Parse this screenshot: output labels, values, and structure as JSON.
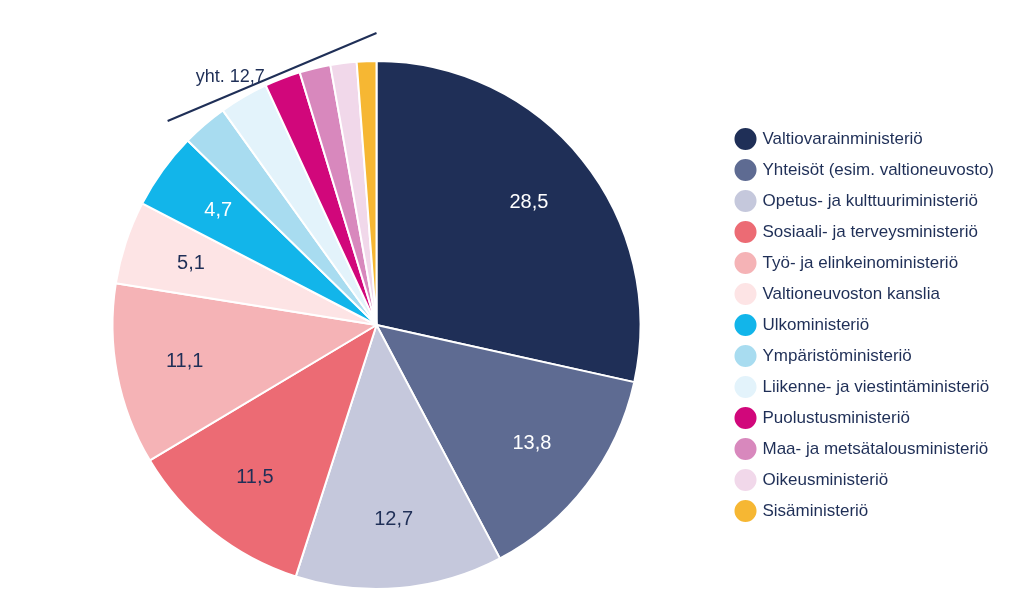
{
  "chart_data": {
    "type": "pie",
    "categories": [
      "Valtiovarainministeriö",
      "Yhteisöt (esim. valtioneuvosto)",
      "Opetus- ja kulttuuriministeriö",
      "Sosiaali- ja terveysministeriö",
      "Työ- ja elinkeinoministeriö",
      "Valtioneuvoston kanslia",
      "Ulkoministeriö",
      "Ympäristöministeriö",
      "Liikenne- ja viestintäministeriö",
      "Puolustusministeriö",
      "Maa- ja metsätalousministeriö",
      "Oikeusministeriö",
      "Sisäministeriö"
    ],
    "values": [
      28.5,
      13.8,
      12.7,
      11.5,
      11.1,
      5.1,
      4.7,
      2.8,
      3.0,
      2.2,
      1.9,
      1.6,
      1.2
    ],
    "value_labels": [
      "28,5",
      "13,8",
      "12,7",
      "11,5",
      "11,1",
      "5,1",
      "4,7",
      null,
      null,
      null,
      null,
      null,
      null
    ],
    "colors": [
      "#1f2f57",
      "#5e6b92",
      "#c5c8dc",
      "#ec6b74",
      "#f5b3b6",
      "#fde4e5",
      "#12b5ea",
      "#a8dcf0",
      "#e3f3fb",
      "#d1077b",
      "#d888bd",
      "#f1d8ea",
      "#f6b733"
    ],
    "data_labels": true,
    "legend": "right",
    "annotation": "yht. 12,7"
  }
}
